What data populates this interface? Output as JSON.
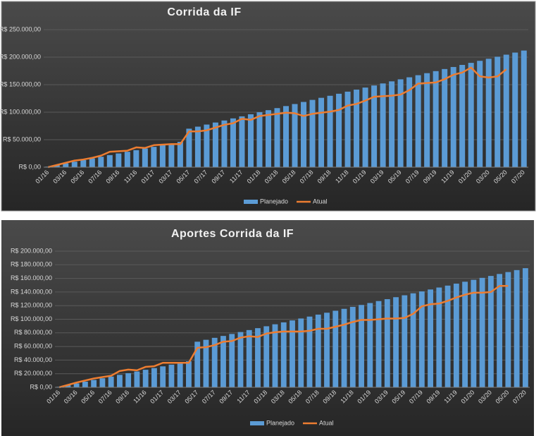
{
  "chart_data": [
    {
      "type": "bar",
      "title": "Corrida da IF",
      "categories": [
        "01/16",
        null,
        "03/16",
        null,
        "05/16",
        null,
        "07/16",
        null,
        "09/16",
        null,
        "11/16",
        null,
        "01/17",
        null,
        "03/17",
        null,
        "05/17",
        null,
        "07/17",
        null,
        "09/17",
        null,
        "11/17",
        null,
        "01/18",
        null,
        "03/18",
        null,
        "05/18",
        null,
        "07/18",
        null,
        "09/18",
        null,
        "11/18",
        null,
        "01/19",
        null,
        "03/19",
        null,
        "05/19",
        null,
        "07/19",
        null,
        "09/19",
        null,
        "11/19",
        null,
        "01/20",
        null,
        "03/20",
        null,
        "05/20",
        null,
        "07/20"
      ],
      "series": [
        {
          "name": "Planejado",
          "type": "bar",
          "color": "#5b9bd5",
          "values": [
            1000,
            4000,
            7000,
            10000,
            13000,
            16000,
            19000,
            22000,
            25000,
            28000,
            31000,
            34000,
            37000,
            40000,
            43000,
            46000,
            70000,
            73700,
            77500,
            81200,
            84900,
            88700,
            92400,
            96200,
            99900,
            103600,
            107400,
            111100,
            114800,
            118600,
            122300,
            126100,
            129800,
            133500,
            137300,
            141000,
            144700,
            148500,
            152200,
            156000,
            159700,
            163400,
            167200,
            170900,
            174600,
            178400,
            182100,
            185900,
            189600,
            193300,
            197100,
            200800,
            204500,
            208300,
            212000
          ]
        },
        {
          "name": "Atual",
          "type": "line",
          "color": "#ed7d31",
          "values": [
            0,
            4000,
            8000,
            12000,
            14000,
            17000,
            21000,
            28000,
            29000,
            30000,
            36000,
            35000,
            40000,
            41000,
            42000,
            42000,
            65000,
            65000,
            67000,
            72000,
            77000,
            80000,
            88000,
            86000,
            93000,
            95000,
            97000,
            99000,
            98000,
            93000,
            97000,
            99000,
            101000,
            104000,
            112000,
            115000,
            121000,
            128000,
            129000,
            130000,
            132000,
            140000,
            152000,
            153000,
            154000,
            160000,
            168000,
            172000,
            181000,
            165000,
            163000,
            165000,
            178000,
            null,
            null
          ]
        }
      ],
      "ylim": [
        0,
        250000
      ],
      "yticks": [
        {
          "value": 0,
          "label": "R$ 0,00"
        },
        {
          "value": 50000,
          "label": "R$ 50.000,00"
        },
        {
          "value": 100000,
          "label": "R$ 100.000,00"
        },
        {
          "value": 150000,
          "label": "R$ 150.000,00"
        },
        {
          "value": 200000,
          "label": "R$ 200.000,00"
        },
        {
          "value": 250000,
          "label": "R$ 250.000,00"
        }
      ],
      "grid": true,
      "legend": "bottom"
    },
    {
      "type": "bar",
      "title": "Aportes Corrida da IF",
      "categories": [
        "01/16",
        null,
        "03/16",
        null,
        "05/16",
        null,
        "07/16",
        null,
        "09/16",
        null,
        "11/16",
        null,
        "01/17",
        null,
        "03/17",
        null,
        "05/17",
        null,
        "07/17",
        null,
        "09/17",
        null,
        "11/17",
        null,
        "01/18",
        null,
        "03/18",
        null,
        "05/18",
        null,
        "07/18",
        null,
        "09/18",
        null,
        "11/18",
        null,
        "01/19",
        null,
        "03/19",
        null,
        "05/19",
        null,
        "07/19",
        null,
        "09/19",
        null,
        "11/19",
        null,
        "01/20",
        null,
        "03/20",
        null,
        "05/20",
        null,
        "07/20"
      ],
      "series": [
        {
          "name": "Planejado",
          "type": "bar",
          "color": "#5b9bd5",
          "values": [
            800,
            3300,
            5800,
            8300,
            10800,
            13300,
            15800,
            18300,
            20800,
            23300,
            25800,
            28300,
            30800,
            33300,
            35800,
            38300,
            67000,
            69800,
            72700,
            75500,
            78400,
            81200,
            84100,
            86900,
            89700,
            92600,
            95400,
            98300,
            101100,
            103900,
            106800,
            109600,
            112500,
            115300,
            118200,
            121000,
            123800,
            126700,
            129500,
            132400,
            135200,
            138100,
            140900,
            143700,
            146600,
            149400,
            152300,
            155100,
            157900,
            160800,
            163600,
            166500,
            169300,
            172200,
            175000
          ]
        },
        {
          "name": "Atual",
          "type": "line",
          "color": "#ed7d31",
          "values": [
            0,
            3500,
            7000,
            10000,
            13000,
            15000,
            17000,
            24000,
            26000,
            25000,
            30000,
            31000,
            36000,
            36000,
            36000,
            36000,
            58000,
            59000,
            62000,
            67000,
            68000,
            73000,
            75000,
            74000,
            79000,
            81000,
            82000,
            82000,
            82000,
            83000,
            86000,
            86000,
            89000,
            92000,
            96000,
            99000,
            99000,
            100000,
            101000,
            101000,
            102000,
            108000,
            119000,
            122000,
            123000,
            127000,
            132000,
            136000,
            139000,
            139000,
            140000,
            149000,
            149000,
            null,
            null
          ]
        }
      ],
      "ylim": [
        0,
        200000
      ],
      "yticks": [
        {
          "value": 0,
          "label": "R$ 0,00"
        },
        {
          "value": 20000,
          "label": "R$ 20.000,00"
        },
        {
          "value": 40000,
          "label": "R$ 40.000,00"
        },
        {
          "value": 60000,
          "label": "R$ 60.000,00"
        },
        {
          "value": 80000,
          "label": "R$ 80.000,00"
        },
        {
          "value": 100000,
          "label": "R$ 100.000,00"
        },
        {
          "value": 120000,
          "label": "R$ 120.000,00"
        },
        {
          "value": 140000,
          "label": "R$ 140.000,00"
        },
        {
          "value": 160000,
          "label": "R$ 160.000,00"
        },
        {
          "value": 180000,
          "label": "R$ 180.000,00"
        },
        {
          "value": 200000,
          "label": "R$ 200.000,00"
        }
      ],
      "grid": true,
      "legend": "bottom"
    }
  ]
}
